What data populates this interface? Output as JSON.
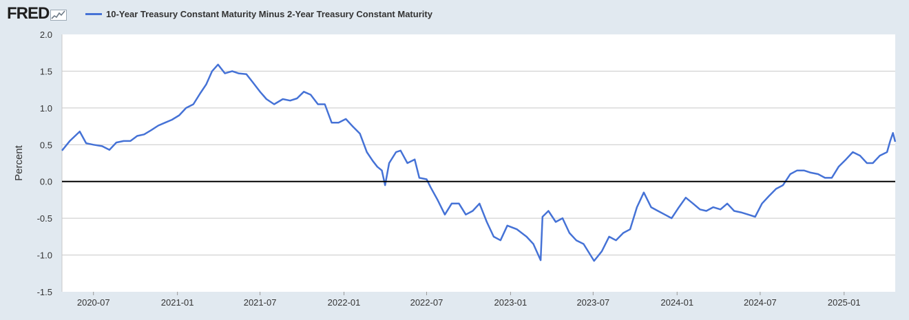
{
  "header": {
    "logo_text": "FRED",
    "logo_icon": "trend-sparkline-icon"
  },
  "chart_data": {
    "type": "line",
    "title": "10-Year Treasury Constant Maturity Minus 2-Year Treasury Constant Maturity",
    "xlabel": "",
    "ylabel": "Percent",
    "ylim": [
      -1.5,
      2.0
    ],
    "yticks": [
      "2.0",
      "1.5",
      "1.0",
      "0.5",
      "0.0",
      "-0.5",
      "-1.0",
      "-1.5"
    ],
    "xlim": [
      "2020-04-23",
      "2025-04-23"
    ],
    "xticks": [
      "2020-07",
      "2021-01",
      "2021-07",
      "2022-01",
      "2022-07",
      "2023-01",
      "2023-07",
      "2024-01",
      "2024-07",
      "2025-01"
    ],
    "reference_line": 0.0,
    "grid": true,
    "legend": "top-left",
    "colors": {
      "series": "#4572d6",
      "zero_line": "#000000",
      "grid": "#c8c8c8",
      "plot_bg": "#ffffff",
      "page_bg": "#e1e9f0"
    },
    "series": [
      {
        "name": "10-Year Treasury Constant Maturity Minus 2-Year Treasury Constant Maturity",
        "points": [
          [
            "2020-04-23",
            0.42
          ],
          [
            "2020-05-10",
            0.55
          ],
          [
            "2020-06-01",
            0.68
          ],
          [
            "2020-06-15",
            0.52
          ],
          [
            "2020-07-01",
            0.5
          ],
          [
            "2020-07-20",
            0.48
          ],
          [
            "2020-08-05",
            0.43
          ],
          [
            "2020-08-20",
            0.53
          ],
          [
            "2020-09-05",
            0.55
          ],
          [
            "2020-09-20",
            0.55
          ],
          [
            "2020-10-05",
            0.62
          ],
          [
            "2020-10-20",
            0.64
          ],
          [
            "2020-11-05",
            0.7
          ],
          [
            "2020-11-20",
            0.76
          ],
          [
            "2020-12-05",
            0.8
          ],
          [
            "2020-12-20",
            0.84
          ],
          [
            "2021-01-05",
            0.9
          ],
          [
            "2021-01-20",
            1.0
          ],
          [
            "2021-02-05",
            1.05
          ],
          [
            "2021-02-20",
            1.2
          ],
          [
            "2021-03-05",
            1.32
          ],
          [
            "2021-03-18",
            1.5
          ],
          [
            "2021-03-31",
            1.59
          ],
          [
            "2021-04-15",
            1.47
          ],
          [
            "2021-05-01",
            1.5
          ],
          [
            "2021-05-15",
            1.47
          ],
          [
            "2021-06-01",
            1.46
          ],
          [
            "2021-06-15",
            1.35
          ],
          [
            "2021-07-01",
            1.22
          ],
          [
            "2021-07-15",
            1.12
          ],
          [
            "2021-08-01",
            1.05
          ],
          [
            "2021-08-20",
            1.12
          ],
          [
            "2021-09-05",
            1.1
          ],
          [
            "2021-09-20",
            1.13
          ],
          [
            "2021-10-05",
            1.22
          ],
          [
            "2021-10-20",
            1.18
          ],
          [
            "2021-11-05",
            1.05
          ],
          [
            "2021-11-20",
            1.05
          ],
          [
            "2021-12-05",
            0.8
          ],
          [
            "2021-12-20",
            0.8
          ],
          [
            "2022-01-05",
            0.85
          ],
          [
            "2022-01-20",
            0.75
          ],
          [
            "2022-02-05",
            0.65
          ],
          [
            "2022-02-20",
            0.4
          ],
          [
            "2022-03-05",
            0.28
          ],
          [
            "2022-03-15",
            0.2
          ],
          [
            "2022-03-25",
            0.15
          ],
          [
            "2022-04-01",
            -0.05
          ],
          [
            "2022-04-10",
            0.25
          ],
          [
            "2022-04-25",
            0.4
          ],
          [
            "2022-05-05",
            0.42
          ],
          [
            "2022-05-20",
            0.25
          ],
          [
            "2022-06-05",
            0.3
          ],
          [
            "2022-06-15",
            0.05
          ],
          [
            "2022-07-01",
            0.03
          ],
          [
            "2022-07-10",
            -0.08
          ],
          [
            "2022-07-25",
            -0.25
          ],
          [
            "2022-08-10",
            -0.45
          ],
          [
            "2022-08-25",
            -0.3
          ],
          [
            "2022-09-10",
            -0.3
          ],
          [
            "2022-09-25",
            -0.45
          ],
          [
            "2022-10-10",
            -0.4
          ],
          [
            "2022-10-25",
            -0.3
          ],
          [
            "2022-11-10",
            -0.55
          ],
          [
            "2022-11-25",
            -0.75
          ],
          [
            "2022-12-10",
            -0.8
          ],
          [
            "2022-12-25",
            -0.6
          ],
          [
            "2023-01-15",
            -0.65
          ],
          [
            "2023-02-05",
            -0.75
          ],
          [
            "2023-02-20",
            -0.85
          ],
          [
            "2023-03-08",
            -1.07
          ],
          [
            "2023-03-12",
            -0.48
          ],
          [
            "2023-03-25",
            -0.4
          ],
          [
            "2023-04-10",
            -0.55
          ],
          [
            "2023-04-25",
            -0.5
          ],
          [
            "2023-05-10",
            -0.7
          ],
          [
            "2023-05-25",
            -0.8
          ],
          [
            "2023-06-10",
            -0.85
          ],
          [
            "2023-07-03",
            -1.08
          ],
          [
            "2023-07-20",
            -0.95
          ],
          [
            "2023-08-05",
            -0.75
          ],
          [
            "2023-08-20",
            -0.8
          ],
          [
            "2023-09-05",
            -0.7
          ],
          [
            "2023-09-20",
            -0.65
          ],
          [
            "2023-10-05",
            -0.35
          ],
          [
            "2023-10-20",
            -0.15
          ],
          [
            "2023-11-05",
            -0.35
          ],
          [
            "2023-11-20",
            -0.4
          ],
          [
            "2023-12-05",
            -0.45
          ],
          [
            "2023-12-20",
            -0.5
          ],
          [
            "2024-01-05",
            -0.35
          ],
          [
            "2024-01-20",
            -0.22
          ],
          [
            "2024-02-05",
            -0.3
          ],
          [
            "2024-02-20",
            -0.38
          ],
          [
            "2024-03-05",
            -0.4
          ],
          [
            "2024-03-20",
            -0.35
          ],
          [
            "2024-04-05",
            -0.38
          ],
          [
            "2024-04-20",
            -0.3
          ],
          [
            "2024-05-05",
            -0.4
          ],
          [
            "2024-05-20",
            -0.42
          ],
          [
            "2024-06-05",
            -0.45
          ],
          [
            "2024-06-20",
            -0.48
          ],
          [
            "2024-07-05",
            -0.3
          ],
          [
            "2024-07-20",
            -0.2
          ],
          [
            "2024-08-05",
            -0.1
          ],
          [
            "2024-08-20",
            -0.05
          ],
          [
            "2024-09-05",
            0.1
          ],
          [
            "2024-09-20",
            0.15
          ],
          [
            "2024-10-05",
            0.15
          ],
          [
            "2024-10-20",
            0.12
          ],
          [
            "2024-11-05",
            0.1
          ],
          [
            "2024-11-20",
            0.05
          ],
          [
            "2024-12-05",
            0.05
          ],
          [
            "2024-12-20",
            0.2
          ],
          [
            "2025-01-05",
            0.3
          ],
          [
            "2025-01-20",
            0.4
          ],
          [
            "2025-02-05",
            0.35
          ],
          [
            "2025-02-20",
            0.25
          ],
          [
            "2025-03-05",
            0.25
          ],
          [
            "2025-03-20",
            0.35
          ],
          [
            "2025-04-05",
            0.4
          ],
          [
            "2025-04-12",
            0.55
          ],
          [
            "2025-04-18",
            0.66
          ],
          [
            "2025-04-23",
            0.54
          ]
        ]
      }
    ]
  }
}
